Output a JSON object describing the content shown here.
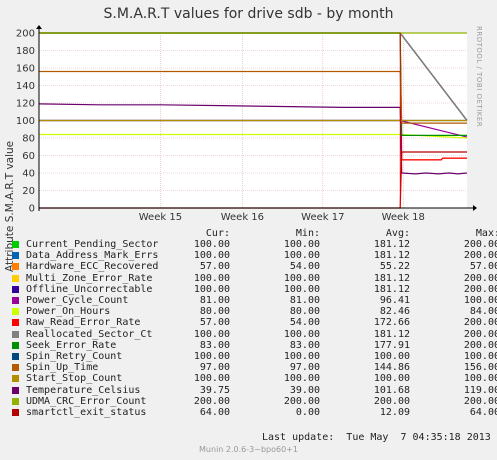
{
  "chart_data": {
    "type": "line",
    "title": "S.M.A.R.T values for drive sdb - by month",
    "ylabel": "Attribute S.M.A.R.T value",
    "side_label": "RRDTOOL / TOBI OETIKER",
    "ylim": [
      0,
      200
    ],
    "yticks": [
      "0",
      "20",
      "40",
      "60",
      "80",
      "100",
      "120",
      "140",
      "160",
      "180",
      "200"
    ],
    "xlim": [
      0,
      28.2
    ],
    "x_ticks": [
      {
        "x": 8,
        "label": "Week 15"
      },
      {
        "x": 13.4,
        "label": "Week 16"
      },
      {
        "x": 18.7,
        "label": "Week 17"
      },
      {
        "x": 24,
        "label": "Week 18"
      }
    ],
    "event_x": 23.8,
    "grid": true,
    "legend_headers": [
      "Cur:",
      "Min:",
      "Avg:",
      "Max:"
    ],
    "series": [
      {
        "name": "Current_Pending_Sector",
        "color": "#00cc00",
        "cur": "100.00",
        "min": "100.00",
        "avg": "181.12",
        "max": "200.00",
        "before": 200,
        "after": [
          [
            23.8,
            200
          ],
          [
            28.2,
            100
          ]
        ]
      },
      {
        "name": "Data_Address_Mark_Errs",
        "color": "#0066b3",
        "cur": "100.00",
        "min": "100.00",
        "avg": "181.12",
        "max": "200.00",
        "before": 200,
        "after": [
          [
            23.8,
            200
          ],
          [
            28.2,
            100
          ]
        ]
      },
      {
        "name": "Hardware_ECC_Recovered",
        "color": "#ff8000",
        "cur": "57.00",
        "min": "54.00",
        "avg": "55.22",
        "max": "57.00",
        "before": null,
        "after": [
          [
            23.8,
            55
          ],
          [
            26.5,
            55
          ],
          [
            26.6,
            57
          ],
          [
            28.2,
            57
          ]
        ]
      },
      {
        "name": "Multi_Zone_Error_Rate",
        "color": "#ffcc00",
        "cur": "100.00",
        "min": "100.00",
        "avg": "181.12",
        "max": "200.00",
        "before": 200,
        "after": [
          [
            23.8,
            200
          ],
          [
            28.2,
            100
          ]
        ]
      },
      {
        "name": "Offline_Uncorrectable",
        "color": "#330099",
        "cur": "100.00",
        "min": "100.00",
        "avg": "181.12",
        "max": "200.00",
        "before": 200,
        "after": [
          [
            23.8,
            200
          ],
          [
            28.2,
            100
          ]
        ]
      },
      {
        "name": "Power_Cycle_Count",
        "color": "#990099",
        "cur": "81.00",
        "min": "81.00",
        "avg": "96.41",
        "max": "100.00",
        "before": 100,
        "after": [
          [
            23.8,
            100
          ],
          [
            28.2,
            81
          ]
        ]
      },
      {
        "name": "Power_On_Hours",
        "color": "#ccff00",
        "cur": "80.00",
        "min": "80.00",
        "avg": "82.46",
        "max": "84.00",
        "before": 84,
        "after": [
          [
            23.8,
            84
          ],
          [
            28.2,
            80
          ]
        ]
      },
      {
        "name": "Raw_Read_Error_Rate",
        "color": "#ff0000",
        "cur": "57.00",
        "min": "54.00",
        "avg": "172.66",
        "max": "200.00",
        "before": 200,
        "after": [
          [
            23.8,
            200
          ],
          [
            23.9,
            55
          ],
          [
            26.5,
            55
          ],
          [
            26.6,
            57
          ],
          [
            28.2,
            57
          ]
        ]
      },
      {
        "name": "Reallocated_Sector_Ct",
        "color": "#808080",
        "cur": "100.00",
        "min": "100.00",
        "avg": "181.12",
        "max": "200.00",
        "before": 200,
        "after": [
          [
            23.8,
            200
          ],
          [
            28.2,
            100
          ]
        ]
      },
      {
        "name": "Seek_Error_Rate",
        "color": "#008f00",
        "cur": "83.00",
        "min": "83.00",
        "avg": "177.91",
        "max": "200.00",
        "before": 200,
        "after": [
          [
            23.8,
            200
          ],
          [
            23.9,
            83
          ],
          [
            28.2,
            83
          ]
        ]
      },
      {
        "name": "Spin_Retry_Count",
        "color": "#00487d",
        "cur": "100.00",
        "min": "100.00",
        "avg": "100.00",
        "max": "100.00",
        "before": 100,
        "after": [
          [
            23.8,
            100
          ],
          [
            28.2,
            100
          ]
        ]
      },
      {
        "name": "Spin_Up_Time",
        "color": "#b35a00",
        "cur": "97.00",
        "min": "97.00",
        "avg": "144.86",
        "max": "156.00",
        "before": 156,
        "after": [
          [
            23.8,
            156
          ],
          [
            23.9,
            97
          ],
          [
            28.2,
            97
          ]
        ]
      },
      {
        "name": "Start_Stop_Count",
        "color": "#b38f00",
        "cur": "100.00",
        "min": "100.00",
        "avg": "100.00",
        "max": "100.00",
        "before": 100,
        "after": [
          [
            23.8,
            100
          ],
          [
            28.2,
            100
          ]
        ]
      },
      {
        "name": "Temperature_Celsius",
        "color": "#6b006b",
        "cur": "39.75",
        "min": "39.00",
        "avg": "101.68",
        "max": "119.00",
        "before": "temp",
        "after": [
          [
            23.8,
            115
          ],
          [
            23.9,
            40
          ],
          [
            24.8,
            39
          ],
          [
            25.5,
            40
          ],
          [
            26.3,
            39
          ],
          [
            27,
            40
          ],
          [
            27.6,
            39
          ],
          [
            28.2,
            40
          ]
        ]
      },
      {
        "name": "UDMA_CRC_Error_Count",
        "color": "#8fb300",
        "cur": "200.00",
        "min": "200.00",
        "avg": "200.00",
        "max": "200.00",
        "before": 200,
        "after": [
          [
            23.8,
            200
          ],
          [
            28.2,
            200
          ]
        ]
      },
      {
        "name": "smartctl_exit_status",
        "color": "#b30000",
        "cur": "64.00",
        "min": "0.00",
        "avg": "12.09",
        "max": "64.00",
        "before": 0,
        "after": [
          [
            23.8,
            0
          ],
          [
            23.9,
            64
          ],
          [
            28.2,
            64
          ]
        ]
      }
    ],
    "temperature_before": [
      [
        0,
        119
      ],
      [
        4,
        118
      ],
      [
        8,
        118
      ],
      [
        12,
        117
      ],
      [
        16,
        116
      ],
      [
        20,
        115
      ],
      [
        23.8,
        115
      ]
    ]
  },
  "last_update_label": "Last update:",
  "last_update_value": "Tue May  7 04:35:18 2013",
  "footer": "Munin 2.0.6-3~bpo60+1"
}
